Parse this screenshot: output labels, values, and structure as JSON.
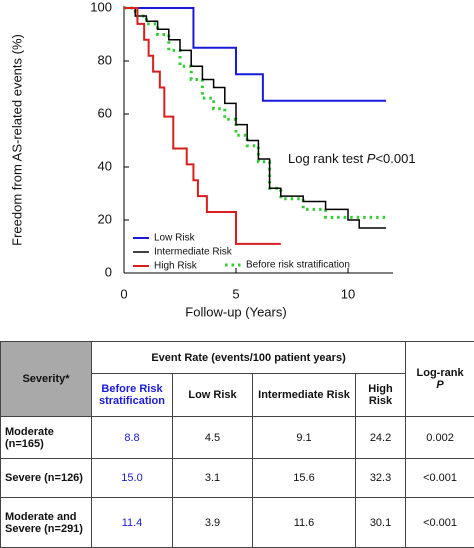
{
  "chart_data": {
    "type": "step",
    "y_label": "Freedom from AS-related events (%)",
    "x_label": "Follow-up (Years)",
    "xlim": [
      0,
      12
    ],
    "xticks": [
      0,
      5,
      10
    ],
    "ylim": [
      0,
      100
    ],
    "yticks": [
      0,
      20,
      40,
      60,
      80,
      100
    ],
    "annotation": {
      "prefix": "Log rank test",
      "italic": "P",
      "suffix": "<0.001"
    },
    "series": [
      {
        "name": "Low Risk",
        "color": "#1a1adb",
        "x": [
          0,
          3.1,
          5,
          6.2,
          11.7
        ],
        "values": [
          100,
          85,
          75,
          65,
          65
        ]
      },
      {
        "name": "Intermediate Risk",
        "color": "#000000",
        "x": [
          0,
          0.5,
          1,
          1.5,
          2,
          2.5,
          3,
          3.5,
          4,
          4.5,
          5,
          5.5,
          6,
          6.5,
          7,
          8,
          9,
          10,
          10.5,
          11.7
        ],
        "values": [
          100,
          97,
          95,
          92,
          88,
          84,
          78,
          73,
          70,
          64,
          56,
          50,
          43,
          32,
          29,
          27,
          24,
          20,
          17,
          17
        ]
      },
      {
        "name": "High Risk",
        "color": "#d81e1e",
        "x": [
          0,
          0.6,
          0.9,
          1.1,
          1.3,
          1.6,
          1.8,
          2.2,
          2.8,
          3.1,
          3.3,
          3.7,
          5,
          7
        ],
        "values": [
          100,
          94,
          88,
          82,
          76,
          70,
          59,
          47,
          41,
          35,
          29,
          23,
          11,
          11
        ]
      },
      {
        "name": "Before risk stratification",
        "color": "#33cc33",
        "x": [
          0,
          0.5,
          1,
          1.5,
          2,
          2.5,
          3,
          3.5,
          4,
          4.5,
          5,
          5.5,
          6,
          6.5,
          7,
          8,
          9,
          10,
          11.7
        ],
        "values": [
          100,
          97,
          94,
          90,
          84,
          78,
          73,
          66,
          62,
          58,
          52,
          48,
          42,
          32,
          28,
          24,
          21,
          21,
          21
        ]
      }
    ]
  },
  "table": {
    "severity_header": "Severity*",
    "group_header": "Event Rate (events/100 patient years)",
    "pvalue_header": {
      "text": "Log-rank",
      "italic": "P"
    },
    "columns": [
      "Before Risk stratification",
      "Low Risk",
      "Intermediate Risk",
      "High Risk"
    ],
    "rows": [
      {
        "label": "Moderate (n=165)",
        "values": [
          "8.8",
          "4.5",
          "9.1",
          "24.2"
        ],
        "p": "0.002"
      },
      {
        "label": "Severe (n=126)",
        "values": [
          "15.0",
          "3.1",
          "15.6",
          "32.3"
        ],
        "p": "<0.001"
      },
      {
        "label": "Moderate and Severe (n=291)",
        "values": [
          "11.4",
          "3.9",
          "11.6",
          "30.1"
        ],
        "p": "<0.001"
      }
    ]
  }
}
